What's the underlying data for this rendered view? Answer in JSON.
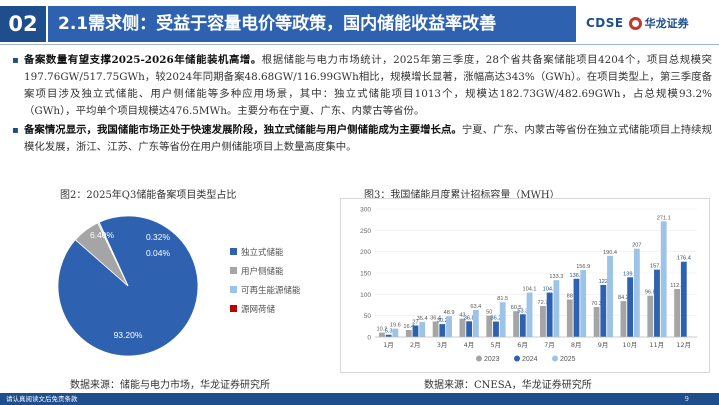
{
  "header": {
    "section_number": "02",
    "title": "2.1需求侧：受益于容量电价等政策，国内储能收益率改善",
    "logo_text": "CDSE",
    "logo_cn": "华龙证券"
  },
  "bullets": [
    {
      "lead": "备案数量有望支撑2025-2026年储能装机高增。",
      "text": "根据储能与电力市场统计，2025年第三季度，28个省共备案储能项目4204个，项目总规模突197.76GW/517.75GWh，较2024年同期备案48.68GW/116.99GWh相比，规模增长显著，涨幅高达343%（GWh）。在项目类型上，第三季度备案项目涉及独立式储能、用户侧储能等多种应用场景，其中：独立式储能项目1013个，规模达182.73GW/482.69GWh，占总规模93.2%（GWh），平均单个项目规模达476.5MWh。主要分布在宁夏、广东、内蒙古等省份。"
    },
    {
      "lead": "备案情况显示，我国储能市场正处于快速发展阶段，独立式储能与用户侧储能成为主要增长点。",
      "text": "宁夏、广东、内蒙古等省份在独立式储能项目上持续规模化发展，浙江、江苏、广东等省份在用户侧储能项目上数量高度集中。"
    }
  ],
  "fig2": {
    "title": "图2：2025年Q3储能备案项目类型占比",
    "source": "数据来源：储能与电力市场，华龙证券研究所"
  },
  "fig3": {
    "title": "图3：我国储能月度累计招标容量（MWH）",
    "source": "数据来源：CNESA，华龙证券研究所"
  },
  "footer": {
    "disclaimer": "请认真阅读文后免责条款",
    "page": "9"
  },
  "chart_data": [
    {
      "type": "pie",
      "slices": [
        {
          "label": "独立式储能",
          "value": 93.2,
          "display": "93.20%",
          "color": "#2e62b0"
        },
        {
          "label": "用户侧储能",
          "value": 6.4,
          "display": "6.40%",
          "color": "#a5a5a5"
        },
        {
          "label": "可再生能源储能",
          "value": 0.32,
          "display": "0.32%",
          "color": "#9dc3e6"
        },
        {
          "label": "源网荷储",
          "value": 0.04,
          "display": "0.04%",
          "color": "#c00000"
        }
      ],
      "legend_position": "right"
    },
    {
      "type": "bar",
      "categories": [
        "1月",
        "2月",
        "3月",
        "4月",
        "5月",
        "6月",
        "7月",
        "8月",
        "9月",
        "10月",
        "11月",
        "12月"
      ],
      "series": [
        {
          "name": "2023",
          "color": "#a5a5a5",
          "values": [
            10.2,
            16.4,
            36.4,
            43.0,
            50.0,
            60.5,
            72.7,
            88.0,
            70.3,
            84.2,
            96.8,
            112.5
          ]
        },
        {
          "name": "2024",
          "color": "#2e62b0",
          "values": [
            5.3,
            27.0,
            30.2,
            36.8,
            36.2,
            53.3,
            104.1,
            136.5,
            122.0,
            139.9,
            157.9,
            176.4
          ]
        },
        {
          "name": "2025",
          "color": "#9dc3e6",
          "values": [
            19.6,
            35.4,
            48.9,
            63.4,
            81.5,
            104.1,
            133.3,
            156.9,
            190.4,
            207.0,
            271.1,
            null
          ]
        }
      ],
      "ylim": [
        0,
        300
      ],
      "yticks": [
        0,
        50,
        100,
        150,
        200,
        250,
        300
      ],
      "legend_position": "bottom"
    }
  ]
}
